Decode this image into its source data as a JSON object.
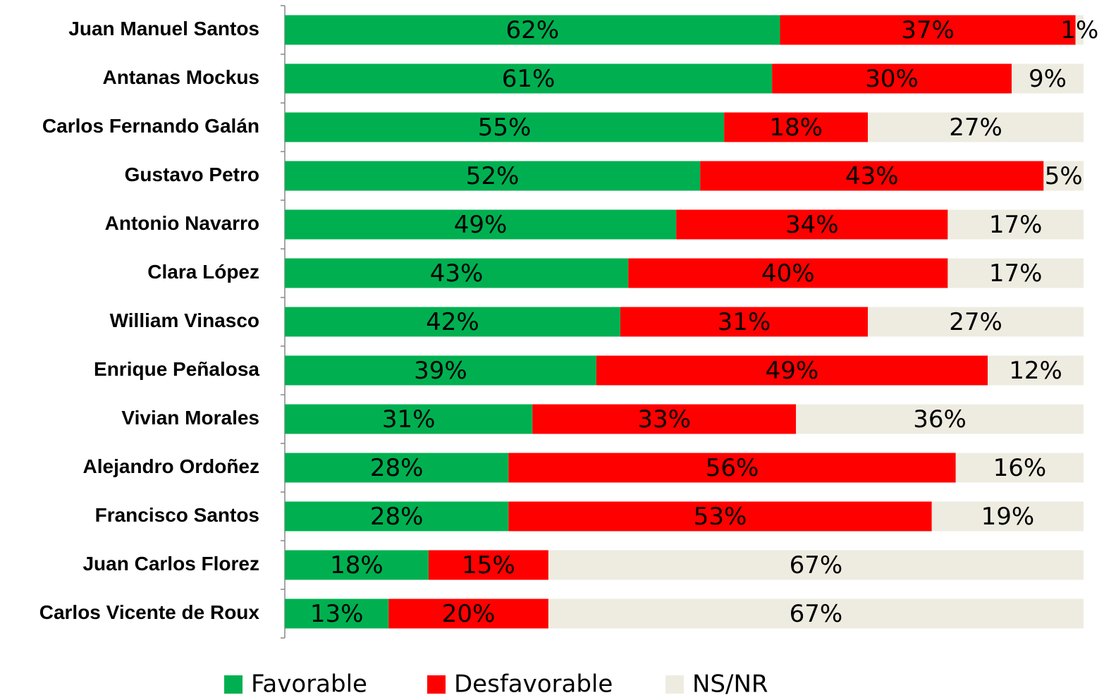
{
  "chart_data": {
    "type": "stacked-bar-horizontal",
    "categories": [
      "Juan Manuel Santos",
      "Antanas Mockus",
      "Carlos Fernando Galán",
      "Gustavo Petro",
      "Antonio Navarro",
      "Clara López",
      "William Vinasco",
      "Enrique Peñalosa",
      "Vivian Morales",
      "Alejandro Ordoñez",
      "Francisco Santos",
      "Juan Carlos Florez",
      "Carlos Vicente de Roux"
    ],
    "series": [
      {
        "name": "Favorable",
        "color": "#00b050",
        "values": [
          62,
          61,
          55,
          52,
          49,
          43,
          42,
          39,
          31,
          28,
          28,
          18,
          13
        ],
        "value_labels": [
          "62%",
          "61%",
          "55%",
          "52%",
          "49%",
          "43%",
          "42%",
          "39%",
          "31%",
          "28%",
          "28%",
          "18%",
          "13%"
        ]
      },
      {
        "name": "Desfavorable",
        "color": "#ff0000",
        "values": [
          37,
          30,
          18,
          43,
          34,
          40,
          31,
          49,
          33,
          56,
          53,
          15,
          20
        ],
        "value_labels": [
          "37%",
          "30%",
          "18%",
          "43%",
          "34%",
          "40%",
          "31%",
          "49%",
          "33%",
          "56%",
          "53%",
          "15%",
          "20%"
        ]
      },
      {
        "name": "NS/NR",
        "color": "#eeece1",
        "values": [
          1,
          9,
          27,
          5,
          17,
          17,
          27,
          12,
          36,
          16,
          19,
          67,
          67
        ],
        "value_labels": [
          "1%",
          "9%",
          "27%",
          "5%",
          "17%",
          "17%",
          "27%",
          "12%",
          "36%",
          "16%",
          "19%",
          "67%",
          "67%"
        ]
      }
    ],
    "xlim": [
      0,
      100
    ]
  }
}
